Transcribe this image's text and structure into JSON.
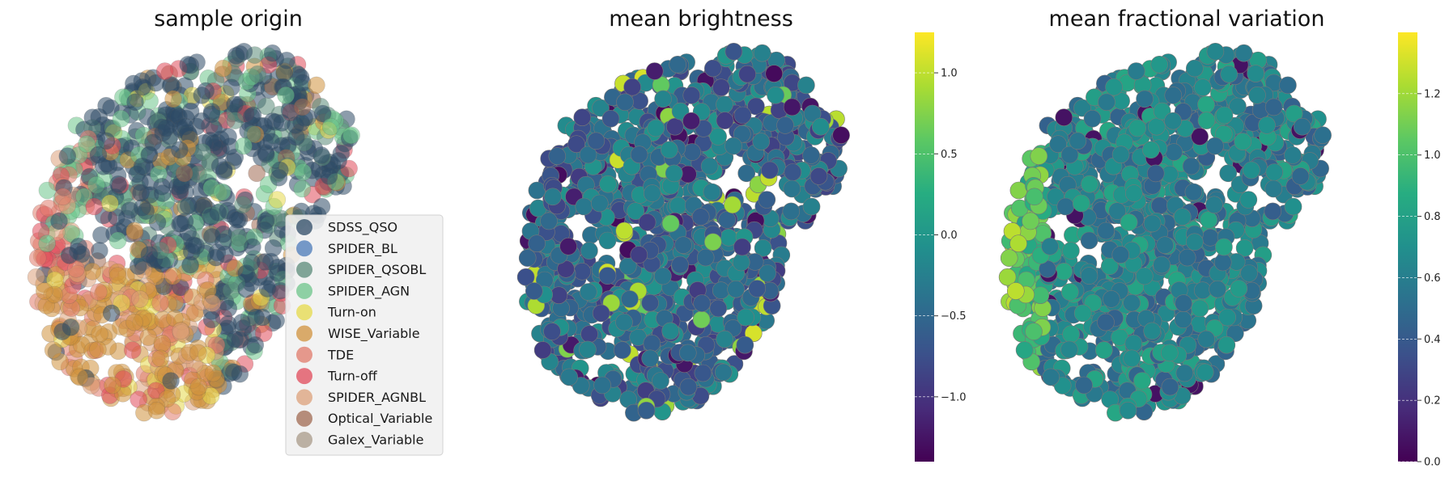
{
  "chart_data": [
    {
      "type": "scatter",
      "title": "sample origin",
      "axes_visible": false,
      "legend_position": "lower-right",
      "legend": [
        {
          "label": "SDSS_QSO",
          "color": "#2e4a66"
        },
        {
          "label": "SPIDER_BL",
          "color": "#4a7ab8"
        },
        {
          "label": "SPIDER_QSOBL",
          "color": "#5a8a78"
        },
        {
          "label": "SPIDER_AGN",
          "color": "#6cc48a"
        },
        {
          "label": "Turn-on",
          "color": "#e6d94a"
        },
        {
          "label": "WISE_Variable",
          "color": "#d0923c"
        },
        {
          "label": "TDE",
          "color": "#e07a6a"
        },
        {
          "label": "Turn-off",
          "color": "#e04a5a"
        },
        {
          "label": "SPIDER_AGNBL",
          "color": "#dca07a"
        },
        {
          "label": "Optical_Variable",
          "color": "#a06a52"
        },
        {
          "label": "Galex_Variable",
          "color": "#a89a88"
        }
      ]
    },
    {
      "type": "scatter",
      "title": "mean brightness",
      "axes_visible": false,
      "colormap": "viridis",
      "colorbar": {
        "min": -1.4,
        "max": 1.25,
        "ticks": [
          "−1.0",
          "−0.5",
          "0.0",
          "0.5",
          "1.0"
        ],
        "tick_values": [
          -1.0,
          -0.5,
          0.0,
          0.5,
          1.0
        ]
      }
    },
    {
      "type": "scatter",
      "title": "mean fractional variation",
      "axes_visible": false,
      "colormap": "viridis",
      "colorbar": {
        "min": 0.0,
        "max": 1.4,
        "ticks": [
          "0.0",
          "0.2",
          "0.4",
          "0.6",
          "0.8",
          "1.0",
          "1.2"
        ],
        "tick_values": [
          0.0,
          0.2,
          0.4,
          0.6,
          0.8,
          1.0,
          1.2
        ]
      }
    }
  ]
}
